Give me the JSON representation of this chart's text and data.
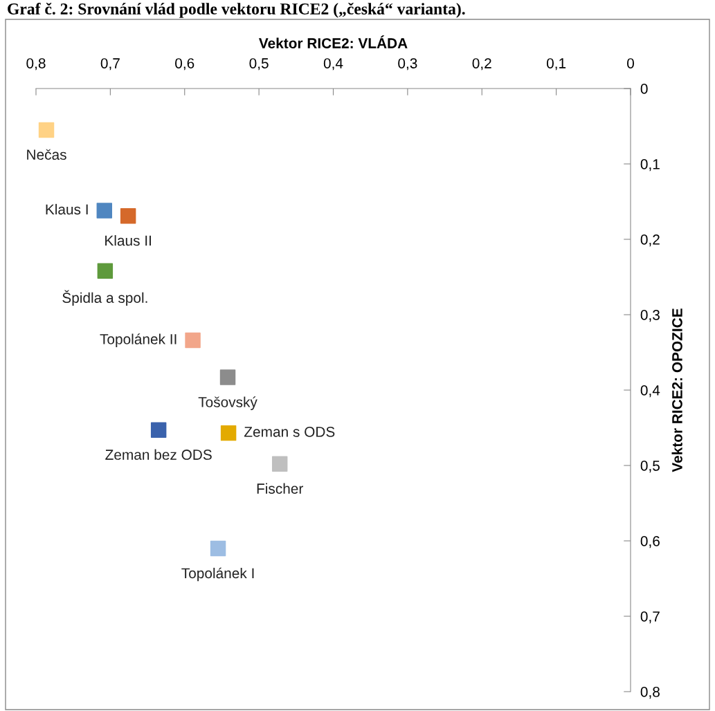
{
  "chart_data": {
    "type": "scatter",
    "title": "Graf č. 2: Srovnání vlád podle vektoru RICE2 („česká“ varianta).",
    "xlabel": "Vektor RICE2: VLÁDA",
    "ylabel": "Vektor RICE2: OPOZICE",
    "marker": "square",
    "legend": false,
    "grid": false,
    "xlim": [
      0.8,
      0
    ],
    "ylim": [
      0.8,
      0
    ],
    "xticks": [
      {
        "value": 0.8,
        "label": "0,8"
      },
      {
        "value": 0.7,
        "label": "0,7"
      },
      {
        "value": 0.6,
        "label": "0,6"
      },
      {
        "value": 0.5,
        "label": "0,5"
      },
      {
        "value": 0.4,
        "label": "0,4"
      },
      {
        "value": 0.3,
        "label": "0,3"
      },
      {
        "value": 0.2,
        "label": "0,2"
      },
      {
        "value": 0.1,
        "label": "0,1"
      },
      0
    ],
    "yticks": [
      0,
      {
        "value": 0.1,
        "label": "0,1"
      },
      {
        "value": 0.2,
        "label": "0,2"
      },
      {
        "value": 0.3,
        "label": "0,3"
      },
      {
        "value": 0.4,
        "label": "0,4"
      },
      {
        "value": 0.5,
        "label": "0,5"
      },
      {
        "value": 0.6,
        "label": "0,6"
      },
      {
        "value": 0.7,
        "label": "0,7"
      },
      {
        "value": 0.8,
        "label": "0,8"
      }
    ],
    "series": [
      {
        "name": "Nečas",
        "color": "#ffd285",
        "x": [
          0.786
        ],
        "values": [
          0.055
        ]
      },
      {
        "name": "Klaus I",
        "color": "#4f86c0",
        "x": [
          0.708
        ],
        "values": [
          0.162
        ]
      },
      {
        "name": "Klaus II",
        "color": "#d5692a",
        "x": [
          0.676
        ],
        "values": [
          0.169
        ]
      },
      {
        "name": "Špidla a spol.",
        "color": "#5e9a3c",
        "x": [
          0.707
        ],
        "values": [
          0.242
        ]
      },
      {
        "name": "Topolánek II",
        "color": "#f2a68a",
        "x": [
          0.589
        ],
        "values": [
          0.334
        ]
      },
      {
        "name": "Tošovský",
        "color": "#8c8c8c",
        "x": [
          0.542
        ],
        "values": [
          0.383
        ]
      },
      {
        "name": "Zeman bez ODS",
        "color": "#3a62ac",
        "x": [
          0.635
        ],
        "values": [
          0.453
        ]
      },
      {
        "name": "Zeman s ODS",
        "color": "#e3aa00",
        "x": [
          0.541
        ],
        "values": [
          0.457
        ]
      },
      {
        "name": "Fischer",
        "color": "#bfbfbf",
        "x": [
          0.472
        ],
        "values": [
          0.498
        ]
      },
      {
        "name": "Topolánek I",
        "color": "#9dbde3",
        "x": [
          0.555
        ],
        "values": [
          0.61
        ]
      }
    ]
  }
}
